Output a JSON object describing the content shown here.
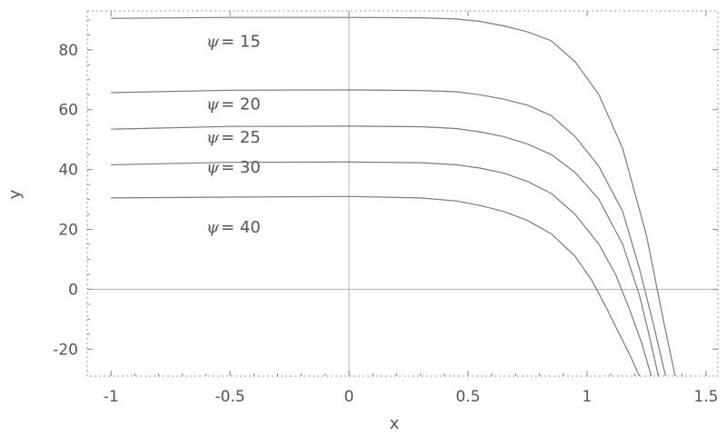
{
  "chart_data": {
    "type": "line",
    "xlabel": "x",
    "ylabel": "y",
    "xlim": [
      -1.1,
      1.55
    ],
    "ylim": [
      -29,
      93
    ],
    "xticks": [
      "-1",
      "-0.5",
      "0",
      "0.5",
      "1",
      "1.5"
    ],
    "yticks": [
      "-20",
      "0",
      "20",
      "40",
      "60",
      "80"
    ],
    "frame_style": "dotted",
    "series": [
      {
        "name": "ψ = 15",
        "label_psi": "ψ",
        "label_value": "= 15",
        "label_at": [
          -0.6,
          81
        ],
        "x": [
          -1.0,
          -0.5,
          0.0,
          0.3,
          0.45,
          0.55,
          0.65,
          0.75,
          0.85,
          0.95,
          1.05,
          1.15,
          1.25,
          1.32,
          1.37
        ],
        "y": [
          90.5,
          90.8,
          90.8,
          90.7,
          90.3,
          89.5,
          88.0,
          86.0,
          83.0,
          76.0,
          65.0,
          47.0,
          18.0,
          -10.0,
          -29.0
        ]
      },
      {
        "name": "ψ = 20",
        "label_psi": "ψ",
        "label_value": "= 20",
        "label_at": [
          -0.6,
          60
        ],
        "x": [
          -1.0,
          -0.5,
          0.0,
          0.3,
          0.45,
          0.55,
          0.65,
          0.75,
          0.85,
          0.95,
          1.05,
          1.15,
          1.22,
          1.28,
          1.33
        ],
        "y": [
          65.7,
          66.5,
          66.6,
          66.4,
          66.0,
          65.0,
          63.5,
          61.5,
          58.0,
          51.0,
          41.0,
          26.0,
          7.0,
          -12.0,
          -29.0
        ]
      },
      {
        "name": "ψ = 25",
        "label_psi": "ψ",
        "label_value": "= 25",
        "label_at": [
          -0.6,
          49
        ],
        "x": [
          -1.0,
          -0.5,
          0.0,
          0.3,
          0.45,
          0.55,
          0.65,
          0.75,
          0.85,
          0.95,
          1.05,
          1.15,
          1.22,
          1.26,
          1.3
        ],
        "y": [
          53.5,
          54.4,
          54.5,
          54.3,
          53.7,
          52.6,
          51.0,
          48.5,
          45.0,
          39.0,
          30.0,
          15.0,
          -2.0,
          -15.0,
          -29.0
        ]
      },
      {
        "name": "ψ = 30",
        "label_psi": "ψ",
        "label_value": "= 30",
        "label_at": [
          -0.6,
          39
        ],
        "x": [
          -1.0,
          -0.5,
          0.0,
          0.3,
          0.45,
          0.55,
          0.65,
          0.75,
          0.85,
          0.95,
          1.05,
          1.12,
          1.18,
          1.23,
          1.27
        ],
        "y": [
          41.6,
          42.4,
          42.5,
          42.3,
          41.6,
          40.5,
          38.8,
          36.0,
          32.0,
          25.0,
          15.0,
          5.0,
          -7.0,
          -18.0,
          -29.0
        ]
      },
      {
        "name": "ψ = 40",
        "label_psi": "ψ",
        "label_value": "= 40",
        "label_at": [
          -0.6,
          19
        ],
        "x": [
          -1.0,
          -0.5,
          0.0,
          0.3,
          0.45,
          0.55,
          0.65,
          0.75,
          0.85,
          0.95,
          1.02,
          1.08,
          1.13,
          1.18,
          1.22
        ],
        "y": [
          30.5,
          30.8,
          31.0,
          30.5,
          29.5,
          28.0,
          26.0,
          23.0,
          18.5,
          11.0,
          3.0,
          -6.0,
          -14.0,
          -22.0,
          -29.0
        ]
      }
    ]
  }
}
